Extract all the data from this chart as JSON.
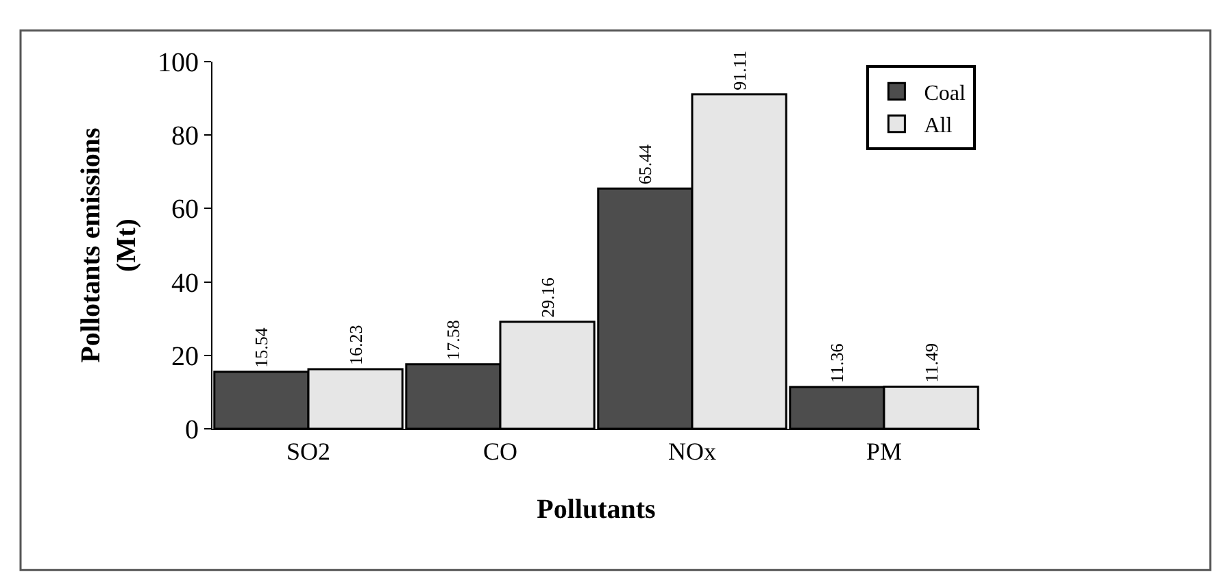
{
  "chart_data": {
    "type": "bar",
    "xlabel": "Pollutants",
    "ylabel": "Pollotants emissions\n(Mt)",
    "categories": [
      "SO2",
      "CO",
      "NOx",
      "PM"
    ],
    "series": [
      {
        "name": "Coal",
        "color": "#4d4d4d",
        "values": [
          15.54,
          17.58,
          65.44,
          11.36
        ]
      },
      {
        "name": "All",
        "color": "#e6e6e6",
        "values": [
          16.23,
          29.16,
          91.11,
          11.49
        ]
      }
    ],
    "ylim": [
      0,
      100
    ],
    "yticks": [
      0,
      20,
      40,
      60,
      80,
      100
    ],
    "data_labels": true,
    "legend": "top right"
  }
}
